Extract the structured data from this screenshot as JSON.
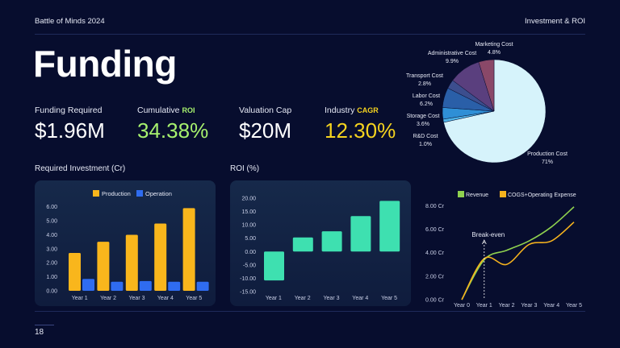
{
  "header": {
    "left": "Battle of Minds 2024",
    "right": "Investment & ROI"
  },
  "title": "Funding",
  "metrics": [
    {
      "label": "Funding Required",
      "label_hl": "",
      "value": "$1.96M",
      "color": "#ffffff",
      "hl_color": "#ffffff"
    },
    {
      "label": "Cumulative ",
      "label_hl": "ROI",
      "value": "34.38%",
      "color": "#a6f06e",
      "hl_color": "#a6f06e"
    },
    {
      "label": "Valuation Cap",
      "label_hl": "",
      "value": "$20M",
      "color": "#ffffff",
      "hl_color": "#ffffff"
    },
    {
      "label": "Industry ",
      "label_hl": "CAGR",
      "value": "12.30%",
      "color": "#f5d31f",
      "hl_color": "#f5d31f"
    }
  ],
  "sections": {
    "investment": "Required Investment (Cr)",
    "roi": "ROI (%)"
  },
  "page_number": "18",
  "chart_data": [
    {
      "type": "pie",
      "slices": [
        {
          "label": "Production Cost",
          "pct_label": "71%",
          "value": 71,
          "color": "#d6f3fb"
        },
        {
          "label": "R&D Cost",
          "pct_label": "1.0%",
          "value": 1.0,
          "color": "#4fb3e8"
        },
        {
          "label": "Storage Cost",
          "pct_label": "3.6%",
          "value": 3.6,
          "color": "#2f8fd6"
        },
        {
          "label": "Labor Cost",
          "pct_label": "6.2%",
          "value": 6.2,
          "color": "#2a5fa8"
        },
        {
          "label": "Transport Cost",
          "pct_label": "2.8%",
          "value": 2.8,
          "color": "#3c4e8e"
        },
        {
          "label": "Administrative Cost",
          "pct_label": "9.9%",
          "value": 9.9,
          "color": "#5a3f7e"
        },
        {
          "label": "Marketing Cost",
          "pct_label": "4.8%",
          "value": 4.8,
          "color": "#8a4868"
        }
      ]
    },
    {
      "type": "bar",
      "categories": [
        "Year 1",
        "Year 2",
        "Year 3",
        "Year 4",
        "Year 5"
      ],
      "series": [
        {
          "name": "Production",
          "values": [
            2.7,
            3.5,
            4.0,
            4.8,
            5.9
          ],
          "color": "#f9b61c"
        },
        {
          "name": "Operation",
          "values": [
            0.85,
            0.65,
            0.7,
            0.65,
            0.65
          ],
          "color": "#2f6cf0"
        }
      ],
      "ylim": [
        0,
        6.5
      ],
      "yticks": [
        "0.00",
        "1.00",
        "2.00",
        "3.00",
        "4.00",
        "5.00",
        "6.00"
      ],
      "grid": false,
      "legend": "top"
    },
    {
      "type": "bar",
      "categories": [
        "Year 1",
        "Year 2",
        "Year 3",
        "Year 4",
        "Year 5"
      ],
      "values": [
        -10.8,
        5.3,
        7.6,
        13.3,
        19.0
      ],
      "color": "#3ee0b0",
      "ylim": [
        -15,
        20
      ],
      "yticks": [
        "-15.00",
        "-10.00",
        "-5.00",
        "0.00",
        "5.00",
        "10.00",
        "15.00",
        "20.00"
      ],
      "grid": false
    },
    {
      "type": "line",
      "x": [
        "Year 0",
        "Year 1",
        "Year 2",
        "Year 3",
        "Year 4",
        "Year 5"
      ],
      "series": [
        {
          "name": "Revenue",
          "values": [
            0.0,
            3.4,
            4.2,
            5.0,
            6.2,
            7.9
          ],
          "color": "#8fd14f"
        },
        {
          "name": "COGS+Operating Expense",
          "values": [
            0.0,
            3.5,
            3.0,
            4.7,
            5.0,
            6.6
          ],
          "color": "#f5b21e"
        }
      ],
      "ylim": [
        0,
        8.5
      ],
      "yticks": [
        "0.00 Cr",
        "2.00 Cr",
        "4.00 Cr",
        "6.00 Cr",
        "8.00 Cr"
      ],
      "annotation": "Break-even",
      "legend": "top"
    }
  ]
}
